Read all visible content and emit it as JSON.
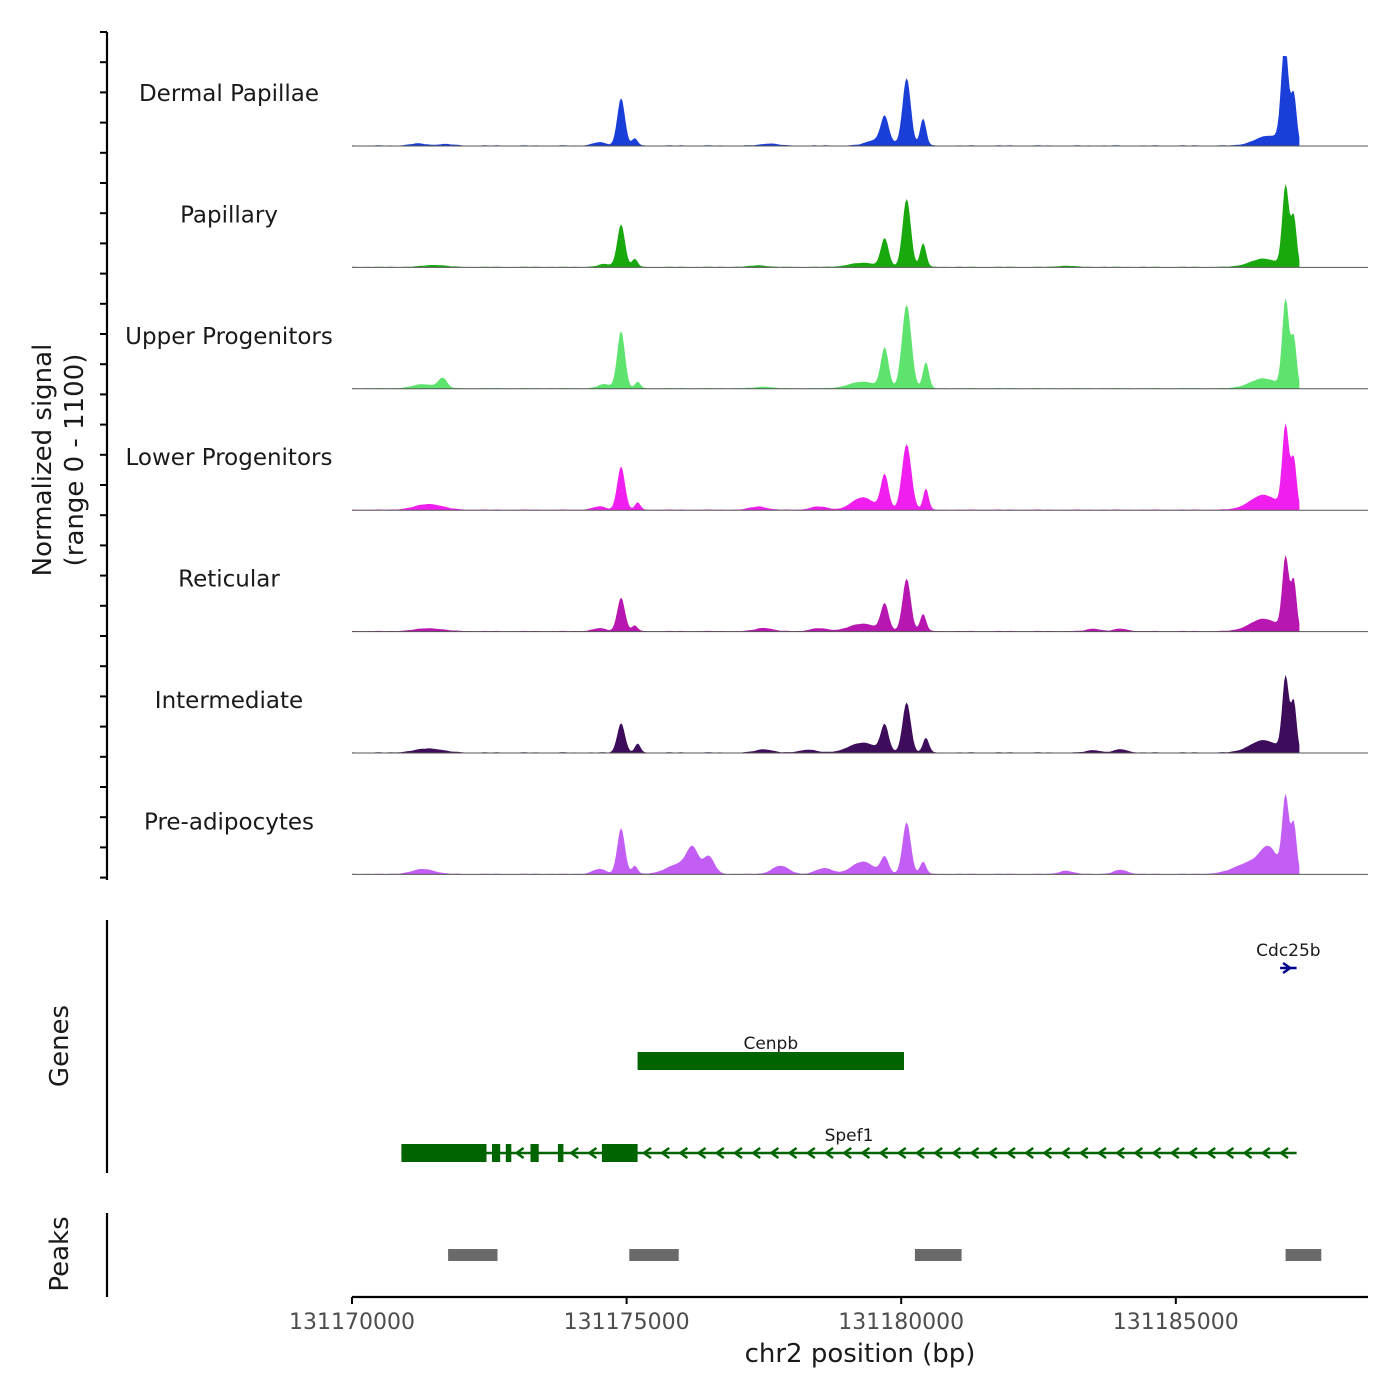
{
  "chart_data": {
    "type": "area",
    "title": "",
    "xlabel": "chr2 position (bp)",
    "ylabel": [
      "Normalized signal",
      "(range 0 - 1100)"
    ],
    "xlim": [
      131170000,
      131188500
    ],
    "ylim": [
      0,
      1100
    ],
    "x_ticks": [
      131170000,
      131175000,
      131180000,
      131185000
    ],
    "x_tick_labels": [
      "131170000",
      "131175000",
      "131180000",
      "131185000"
    ],
    "tracks": [
      {
        "name": "Dermal Papillae",
        "color": "#1a3fd9",
        "peaks": [
          [
            131171200,
            25,
            150
          ],
          [
            131171700,
            18,
            150
          ],
          [
            131174500,
            40,
            120
          ],
          [
            131174900,
            580,
            70
          ],
          [
            131175150,
            90,
            50
          ],
          [
            131177600,
            25,
            150
          ],
          [
            131179600,
            80,
            200
          ],
          [
            131179700,
            300,
            70
          ],
          [
            131180100,
            820,
            75
          ],
          [
            131180400,
            330,
            55
          ],
          [
            131186700,
            120,
            250
          ],
          [
            131186950,
            400,
            60
          ],
          [
            131187000,
            900,
            60
          ],
          [
            131187150,
            600,
            50
          ]
        ]
      },
      {
        "name": "Papillary",
        "color": "#1aa80f",
        "peaks": [
          [
            131171500,
            25,
            200
          ],
          [
            131174600,
            35,
            120
          ],
          [
            131174900,
            520,
            70
          ],
          [
            131175150,
            100,
            50
          ],
          [
            131177400,
            20,
            150
          ],
          [
            131179300,
            50,
            250
          ],
          [
            131179700,
            340,
            70
          ],
          [
            131180100,
            830,
            75
          ],
          [
            131180400,
            290,
            55
          ],
          [
            131183000,
            15,
            150
          ],
          [
            131186600,
            100,
            250
          ],
          [
            131187000,
            980,
            60
          ],
          [
            131187150,
            600,
            50
          ]
        ]
      },
      {
        "name": "Upper Progenitors",
        "color": "#5ee46e",
        "peaks": [
          [
            131171300,
            50,
            200
          ],
          [
            131171650,
            120,
            80
          ],
          [
            131174600,
            50,
            120
          ],
          [
            131174900,
            700,
            70
          ],
          [
            131175200,
            80,
            50
          ],
          [
            131177500,
            20,
            150
          ],
          [
            131179300,
            80,
            250
          ],
          [
            131179700,
            480,
            70
          ],
          [
            131180100,
            1020,
            85
          ],
          [
            131180450,
            320,
            55
          ],
          [
            131186600,
            120,
            250
          ],
          [
            131187000,
            1070,
            60
          ],
          [
            131187150,
            600,
            50
          ]
        ]
      },
      {
        "name": "Lower Progenitors",
        "color": "#f01ff0",
        "peaks": [
          [
            131171400,
            70,
            250
          ],
          [
            131174500,
            40,
            120
          ],
          [
            131174900,
            530,
            70
          ],
          [
            131175200,
            90,
            50
          ],
          [
            131177400,
            40,
            150
          ],
          [
            131178500,
            40,
            150
          ],
          [
            131179300,
            150,
            200
          ],
          [
            131179700,
            420,
            70
          ],
          [
            131180100,
            800,
            85
          ],
          [
            131180450,
            260,
            50
          ],
          [
            131186600,
            180,
            250
          ],
          [
            131187000,
            1000,
            60
          ],
          [
            131187150,
            600,
            50
          ]
        ]
      },
      {
        "name": "Reticular",
        "color": "#b816b0",
        "peaks": [
          [
            131171400,
            35,
            250
          ],
          [
            131174500,
            35,
            120
          ],
          [
            131174900,
            410,
            70
          ],
          [
            131175150,
            70,
            50
          ],
          [
            131177500,
            40,
            150
          ],
          [
            131178500,
            35,
            150
          ],
          [
            131179300,
            90,
            250
          ],
          [
            131179700,
            320,
            70
          ],
          [
            131180100,
            640,
            75
          ],
          [
            131180400,
            210,
            55
          ],
          [
            131183500,
            30,
            120
          ],
          [
            131184000,
            30,
            120
          ],
          [
            131186600,
            150,
            250
          ],
          [
            131187000,
            880,
            60
          ],
          [
            131187150,
            600,
            50
          ]
        ]
      },
      {
        "name": "Intermediate",
        "color": "#3d0c5a",
        "peaks": [
          [
            131171400,
            50,
            250
          ],
          [
            131174900,
            360,
            70
          ],
          [
            131175200,
            110,
            50
          ],
          [
            131177500,
            40,
            150
          ],
          [
            131178300,
            35,
            150
          ],
          [
            131179300,
            120,
            250
          ],
          [
            131179700,
            320,
            70
          ],
          [
            131180100,
            610,
            75
          ],
          [
            131180450,
            180,
            55
          ],
          [
            131183500,
            30,
            120
          ],
          [
            131184000,
            40,
            120
          ],
          [
            131186600,
            150,
            250
          ],
          [
            131187000,
            900,
            60
          ],
          [
            131187150,
            600,
            50
          ]
        ]
      },
      {
        "name": "Pre-adipocytes",
        "color": "#c35ef5",
        "peaks": [
          [
            131171300,
            60,
            200
          ],
          [
            131174500,
            60,
            120
          ],
          [
            131174900,
            560,
            70
          ],
          [
            131175150,
            100,
            50
          ],
          [
            131176000,
            130,
            250
          ],
          [
            131176200,
            250,
            100
          ],
          [
            131176500,
            200,
            100
          ],
          [
            131177800,
            100,
            150
          ],
          [
            131178600,
            70,
            150
          ],
          [
            131179300,
            150,
            200
          ],
          [
            131179700,
            200,
            70
          ],
          [
            131180100,
            630,
            75
          ],
          [
            131180400,
            150,
            55
          ],
          [
            131183000,
            40,
            120
          ],
          [
            131184000,
            50,
            120
          ],
          [
            131186400,
            150,
            300
          ],
          [
            131186700,
            250,
            150
          ],
          [
            131187000,
            920,
            60
          ],
          [
            131187150,
            600,
            50
          ]
        ]
      }
    ],
    "genes": [
      {
        "name": "Cdc25b",
        "start": 131186900,
        "end": 131187200,
        "strand": "+",
        "color": "#00008b",
        "exons": []
      },
      {
        "name": "Cenpb",
        "start": 131175200,
        "end": 131180050,
        "strand": "-",
        "color": "#006400",
        "exons": [
          [
            131175200,
            131180050
          ]
        ]
      },
      {
        "name": "Spef1",
        "start": 131170900,
        "end": 131187200,
        "strand": "-",
        "color": "#006400",
        "exons": [
          [
            131170900,
            131172450
          ],
          [
            131172550,
            131172700
          ],
          [
            131172800,
            131172900
          ],
          [
            131173250,
            131173400
          ],
          [
            131173750,
            131173850
          ],
          [
            131174550,
            131175200
          ]
        ]
      }
    ],
    "peaks_track": {
      "color": "#6a6a6a",
      "regions": [
        [
          131171750,
          131172650
        ],
        [
          131175050,
          131175950
        ],
        [
          131180250,
          131181100
        ],
        [
          131187000,
          131187650
        ]
      ]
    },
    "panel_labels": [
      "Genes",
      "Peaks"
    ]
  }
}
